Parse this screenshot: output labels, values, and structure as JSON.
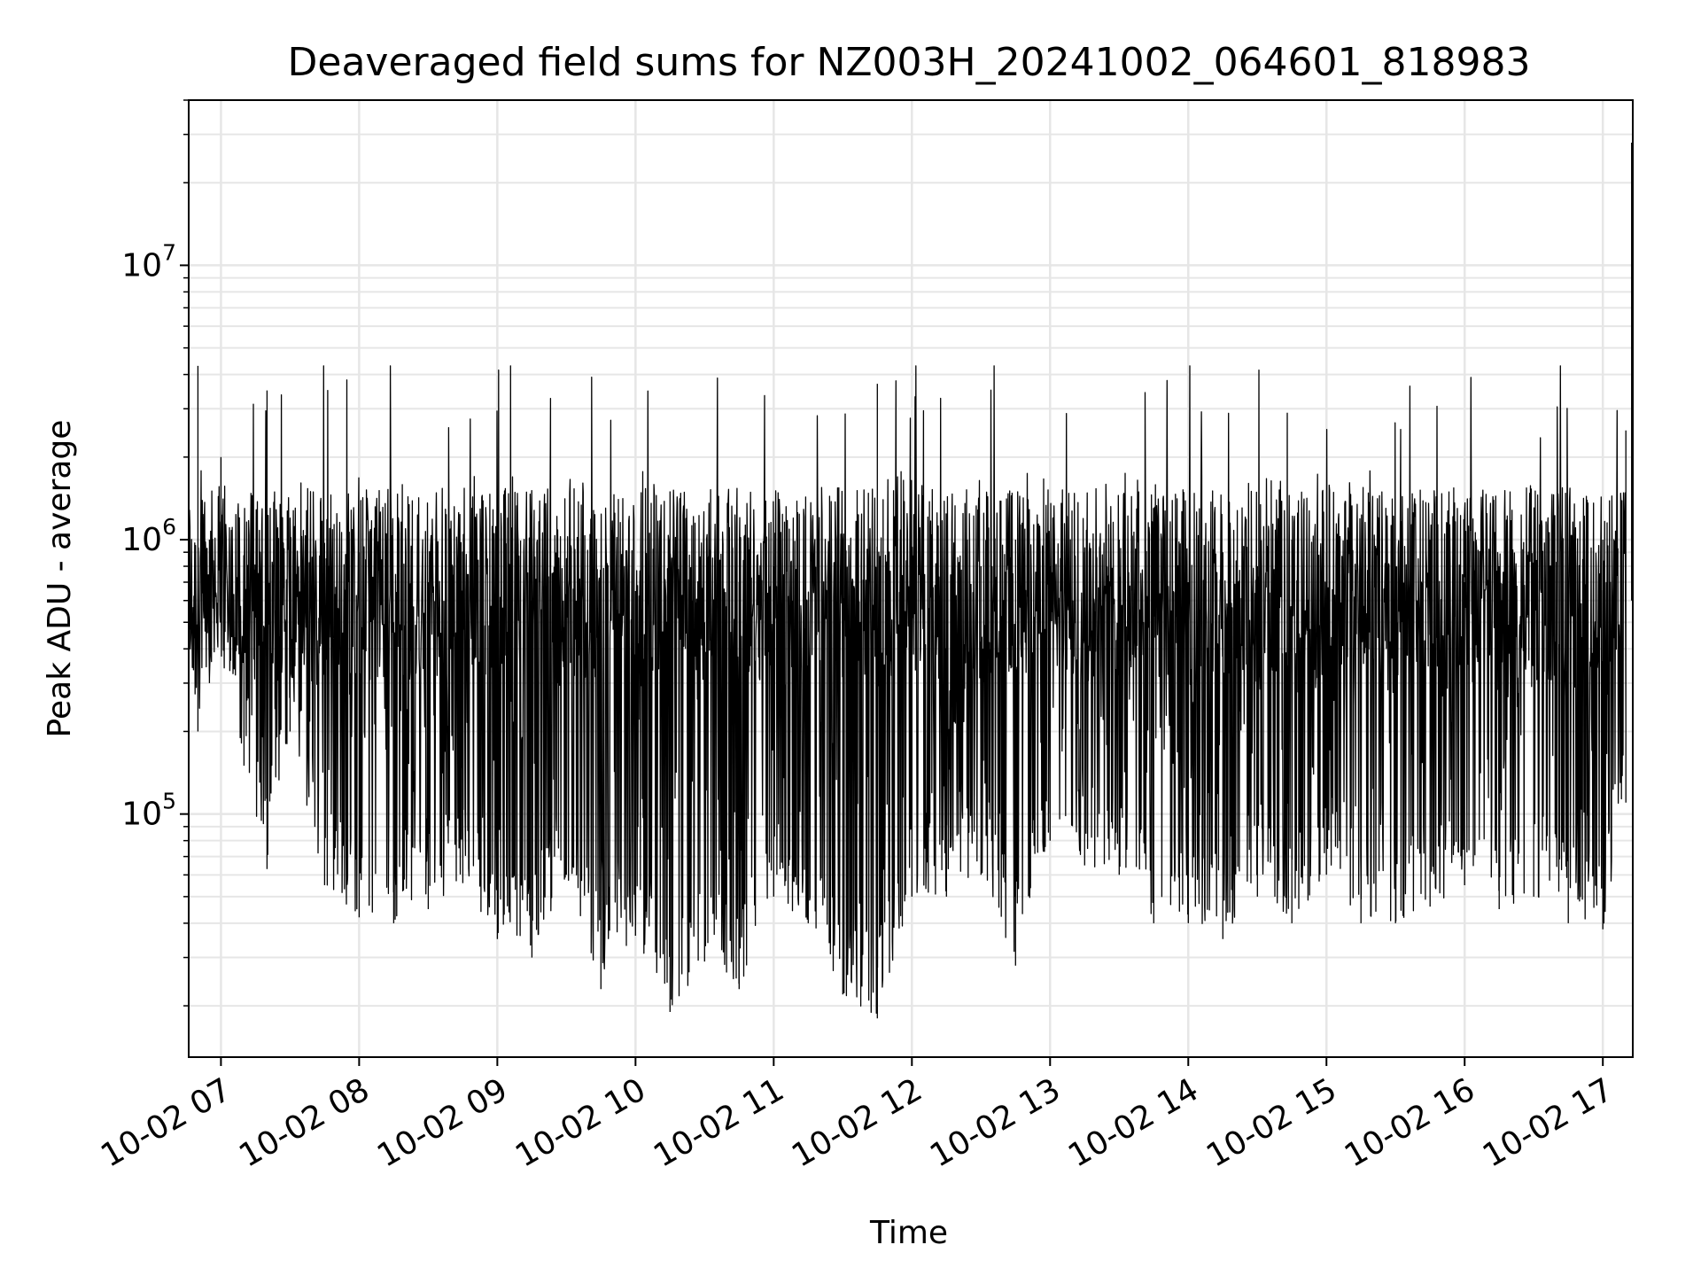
{
  "chart_data": {
    "type": "line",
    "title": "Deaveraged field sums for NZ003H_20241002_064601_818983",
    "xlabel": "Time",
    "ylabel": "Peak ADU - average",
    "y_scale": "log",
    "ylim": [
      13000,
      40000000
    ],
    "xlim": [
      "2024-10-02 06:46",
      "2024-10-02 17:13"
    ],
    "x_ticks": [
      "10-02 07",
      "10-02 08",
      "10-02 09",
      "10-02 10",
      "10-02 11",
      "10-02 12",
      "10-02 13",
      "10-02 14",
      "10-02 15",
      "10-02 16",
      "10-02 17"
    ],
    "y_ticks": [
      {
        "base": "10",
        "exp": "5"
      },
      {
        "base": "10",
        "exp": "6"
      },
      {
        "base": "10",
        "exp": "7"
      }
    ],
    "grid": true,
    "line_color": "#000000",
    "series": [
      {
        "x": [
          "2024-10-02 06:46",
          "2024-10-02 06:50",
          "2024-10-02 06:55",
          "2024-10-02 07:00",
          "2024-10-02 07:10",
          "2024-10-02 07:20",
          "2024-10-02 07:30",
          "2024-10-02 07:45",
          "2024-10-02 08:00",
          "2024-10-02 08:15",
          "2024-10-02 08:30",
          "2024-10-02 08:45",
          "2024-10-02 09:00",
          "2024-10-02 09:15",
          "2024-10-02 09:30",
          "2024-10-02 09:45",
          "2024-10-02 10:00",
          "2024-10-02 10:15",
          "2024-10-02 10:30",
          "2024-10-02 10:45",
          "2024-10-02 11:00",
          "2024-10-02 11:15",
          "2024-10-02 11:30",
          "2024-10-02 11:45",
          "2024-10-02 12:00",
          "2024-10-02 12:15",
          "2024-10-02 12:30",
          "2024-10-02 12:45",
          "2024-10-02 13:00",
          "2024-10-02 13:15",
          "2024-10-02 13:30",
          "2024-10-02 13:45",
          "2024-10-02 14:00",
          "2024-10-02 14:15",
          "2024-10-02 14:30",
          "2024-10-02 14:45",
          "2024-10-02 15:00",
          "2024-10-02 15:15",
          "2024-10-02 15:30",
          "2024-10-02 15:45",
          "2024-10-02 16:00",
          "2024-10-02 16:15",
          "2024-10-02 16:30",
          "2024-10-02 16:45",
          "2024-10-02 17:00",
          "2024-10-02 17:10",
          "2024-10-02 17:13"
        ],
        "y": [
          700000,
          4300000,
          1000000,
          2000000,
          800000,
          3500000,
          1200000,
          600000,
          900000,
          500000,
          700000,
          500000,
          800000,
          600000,
          700000,
          550000,
          650000,
          1500000,
          500000,
          700000,
          800000,
          600000,
          500000,
          3700000,
          700000,
          900000,
          800000,
          1000000,
          800000,
          900000,
          1000000,
          1100000,
          700000,
          900000,
          800000,
          1000000,
          900000,
          700000,
          800000,
          1000000,
          700000,
          800000,
          900000,
          700000,
          1000000,
          2500000,
          28000000
        ],
        "y_min_envelope": [
          300000,
          200000,
          300000,
          500000,
          150000,
          63000,
          200000,
          55000,
          42000,
          40000,
          45000,
          56000,
          35000,
          30000,
          60000,
          23000,
          36000,
          19000,
          29000,
          23000,
          50000,
          40000,
          22000,
          18000,
          50000,
          50000,
          60000,
          28000,
          80000,
          65000,
          60000,
          40000,
          40000,
          35000,
          50000,
          40000,
          60000,
          40000,
          40000,
          46000,
          55000,
          45000,
          50000,
          40000,
          38000,
          110000,
          350000
        ]
      }
    ]
  }
}
